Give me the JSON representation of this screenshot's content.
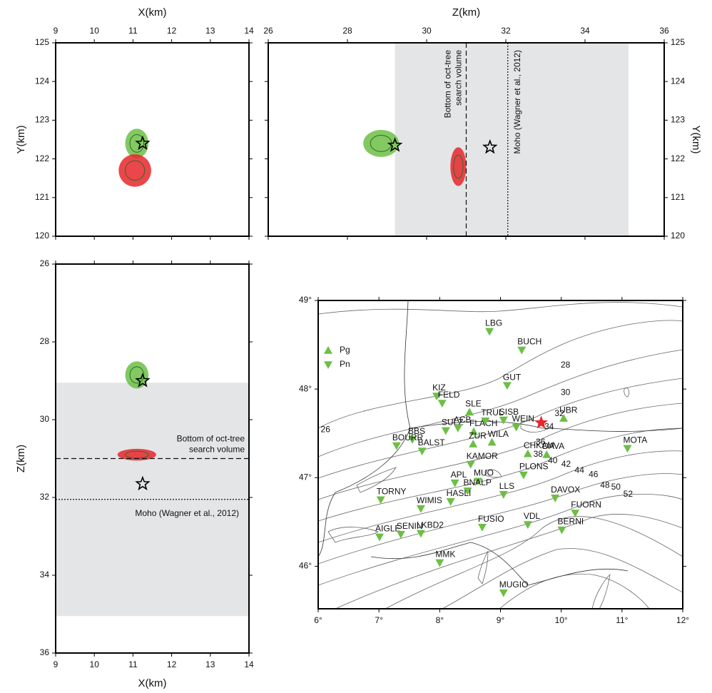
{
  "chart_data": [
    {
      "type": "scatter",
      "xlabel": "X(km)",
      "ylabel": "Y(km)",
      "xlim": [
        9,
        14
      ],
      "ylim": [
        120,
        125
      ],
      "xticks": [
        9,
        10,
        11,
        12,
        13,
        14
      ],
      "yticks": [
        120,
        121,
        122,
        123,
        124,
        125
      ],
      "clouds": [
        {
          "color": "#6cbf45",
          "x": 11.1,
          "y": 122.4,
          "rx": 0.3,
          "ry": 0.38
        },
        {
          "color": "#e8262a",
          "x": 11.05,
          "y": 121.7,
          "rx": 0.42,
          "ry": 0.42
        }
      ],
      "stars": [
        {
          "x": 11.25,
          "y": 122.4
        }
      ]
    },
    {
      "type": "scatter",
      "xlabel": "Z(km)",
      "ylabel": "Y(km)",
      "xlim": [
        26,
        36
      ],
      "ylim": [
        120,
        125
      ],
      "xticks": [
        26,
        28,
        30,
        32,
        34,
        36
      ],
      "yticks": [
        120,
        121,
        122,
        123,
        124,
        125
      ],
      "shade_x": [
        29.2,
        35.1
      ],
      "vlines": [
        {
          "x": 31,
          "style": "dashed",
          "label": [
            "Bottom of oct-tree",
            "search volume"
          ]
        },
        {
          "x": 32.05,
          "style": "dotted",
          "label": [
            "Moho (Wagner et al., 2012)"
          ]
        }
      ],
      "clouds": [
        {
          "color": "#6cbf45",
          "x": 28.85,
          "y": 122.4,
          "rx": 0.45,
          "ry": 0.35
        },
        {
          "color": "#e8262a",
          "x": 30.8,
          "y": 121.8,
          "rx": 0.2,
          "ry": 0.5
        }
      ],
      "stars": [
        {
          "x": 29.2,
          "y": 122.35
        },
        {
          "x": 31.6,
          "y": 122.3
        }
      ]
    },
    {
      "type": "scatter",
      "xlabel": "X(km)",
      "ylabel": "Z(km)",
      "xlim": [
        9,
        14
      ],
      "ylim": [
        26,
        36
      ],
      "y_inverted": true,
      "xticks": [
        9,
        10,
        11,
        12,
        13,
        14
      ],
      "yticks": [
        26,
        28,
        30,
        32,
        34,
        36
      ],
      "shade_y": [
        29.05,
        35.05
      ],
      "hlines": [
        {
          "y": 31,
          "style": "dashed",
          "label": [
            "Bottom of oct-tree",
            "search volume"
          ]
        },
        {
          "y": 32.05,
          "style": "dotted",
          "label": [
            "Moho (Wagner et al., 2012)"
          ]
        }
      ],
      "clouds": [
        {
          "color": "#6cbf45",
          "x": 11.1,
          "y": 28.85,
          "rx": 0.3,
          "ry": 0.35
        },
        {
          "color": "#e8262a",
          "x": 11.1,
          "y": 30.9,
          "rx": 0.5,
          "ry": 0.15
        }
      ],
      "stars": [
        {
          "x": 11.25,
          "y": 29.0
        },
        {
          "x": 11.25,
          "y": 31.65
        }
      ]
    },
    {
      "type": "map",
      "xlim": [
        6,
        12
      ],
      "ylim": [
        45.52,
        49
      ],
      "xticks": [
        {
          "value": 6,
          "label": "6°"
        },
        {
          "value": 7,
          "label": "7°"
        },
        {
          "value": 8,
          "label": "8°"
        },
        {
          "value": 9,
          "label": "9°"
        },
        {
          "value": 10,
          "label": "10°"
        },
        {
          "value": 11,
          "label": "11°"
        },
        {
          "value": 12,
          "label": "12°"
        }
      ],
      "yticks": [
        {
          "value": 46,
          "label": "46°"
        },
        {
          "value": 47,
          "label": "47°"
        },
        {
          "value": 48,
          "label": "48°"
        },
        {
          "value": 49,
          "label": "49°"
        }
      ],
      "epicenter": {
        "color": "#e8262a",
        "lon": 9.67,
        "lat": 47.62
      },
      "series": [
        {
          "name": "Pg",
          "color": "#6cbf45",
          "marker": "up",
          "stations": [
            {
              "name": "SLE",
              "lon": 8.49,
              "lat": 47.74
            },
            {
              "name": "FLACH",
              "lon": 8.56,
              "lat": 47.52
            },
            {
              "name": "ZUR",
              "lon": 8.55,
              "lat": 47.38
            },
            {
              "name": "WILA",
              "lon": 8.86,
              "lat": 47.4
            },
            {
              "name": "CHKAM",
              "lon": 9.45,
              "lat": 47.27
            },
            {
              "name": "DAVA",
              "lon": 9.76,
              "lat": 47.26
            },
            {
              "name": "UBR",
              "lon": 10.04,
              "lat": 47.67
            }
          ]
        },
        {
          "name": "Pn",
          "color": "#6cbf45",
          "marker": "down",
          "stations": [
            {
              "name": "LBG",
              "lon": 8.82,
              "lat": 48.65
            },
            {
              "name": "BUCH",
              "lon": 9.35,
              "lat": 48.44
            },
            {
              "name": "GUT",
              "lon": 9.11,
              "lat": 48.04
            },
            {
              "name": "KIZ",
              "lon": 7.95,
              "lat": 47.92
            },
            {
              "name": "FELD",
              "lon": 8.04,
              "lat": 47.84
            },
            {
              "name": "TRUL",
              "lon": 8.75,
              "lat": 47.64
            },
            {
              "name": "SISB",
              "lon": 9.05,
              "lat": 47.65
            },
            {
              "name": "WEIN",
              "lon": 9.26,
              "lat": 47.57
            },
            {
              "name": "SULZ",
              "lon": 8.1,
              "lat": 47.53
            },
            {
              "name": "ACB",
              "lon": 8.3,
              "lat": 47.56
            },
            {
              "name": "BBS",
              "lon": 7.55,
              "lat": 47.43
            },
            {
              "name": "BOURR",
              "lon": 7.29,
              "lat": 47.36
            },
            {
              "name": "BALST",
              "lon": 7.71,
              "lat": 47.3
            },
            {
              "name": "KAMOR",
              "lon": 8.51,
              "lat": 47.15
            },
            {
              "name": "MOTA",
              "lon": 11.09,
              "lat": 47.33
            },
            {
              "name": "PLONS",
              "lon": 9.38,
              "lat": 47.03
            },
            {
              "name": "APL",
              "lon": 8.25,
              "lat": 46.94
            },
            {
              "name": "MUO",
              "lon": 8.63,
              "lat": 46.96
            },
            {
              "name": "BNALP",
              "lon": 8.46,
              "lat": 46.85
            },
            {
              "name": "LLS",
              "lon": 9.05,
              "lat": 46.81
            },
            {
              "name": "DAVOX",
              "lon": 9.9,
              "lat": 46.77
            },
            {
              "name": "HASLI",
              "lon": 8.18,
              "lat": 46.73
            },
            {
              "name": "TORNY",
              "lon": 7.03,
              "lat": 46.75
            },
            {
              "name": "WIMIS",
              "lon": 7.69,
              "lat": 46.65
            },
            {
              "name": "FUORN",
              "lon": 10.23,
              "lat": 46.6
            },
            {
              "name": "AIGLE",
              "lon": 7.01,
              "lat": 46.33
            },
            {
              "name": "LKBD2",
              "lon": 7.69,
              "lat": 46.37
            },
            {
              "name": "SENIN",
              "lon": 7.36,
              "lat": 46.36
            },
            {
              "name": "FUSIO",
              "lon": 8.7,
              "lat": 46.44
            },
            {
              "name": "VDL",
              "lon": 9.45,
              "lat": 46.47
            },
            {
              "name": "BERNI",
              "lon": 10.01,
              "lat": 46.41
            },
            {
              "name": "MMK",
              "lon": 8.0,
              "lat": 46.04
            },
            {
              "name": "MUGIO",
              "lon": 9.05,
              "lat": 45.7
            }
          ]
        }
      ],
      "contour_labels": [
        {
          "label": "26",
          "lon": 6.12,
          "lat": 47.54
        },
        {
          "label": "28",
          "lon": 10.07,
          "lat": 48.27
        },
        {
          "label": "30",
          "lon": 10.07,
          "lat": 47.96
        },
        {
          "label": "32",
          "lon": 9.97,
          "lat": 47.72
        },
        {
          "label": "34",
          "lon": 9.8,
          "lat": 47.57
        },
        {
          "label": "36",
          "lon": 9.66,
          "lat": 47.4
        },
        {
          "label": "38",
          "lon": 9.62,
          "lat": 47.26
        },
        {
          "label": "40",
          "lon": 9.86,
          "lat": 47.19
        },
        {
          "label": "42",
          "lon": 10.08,
          "lat": 47.15
        },
        {
          "label": "44",
          "lon": 10.3,
          "lat": 47.08
        },
        {
          "label": "46",
          "lon": 10.53,
          "lat": 47.03
        },
        {
          "label": "48",
          "lon": 10.72,
          "lat": 46.91
        },
        {
          "label": "50",
          "lon": 10.9,
          "lat": 46.89
        },
        {
          "label": "52",
          "lon": 11.1,
          "lat": 46.81
        }
      ]
    }
  ]
}
